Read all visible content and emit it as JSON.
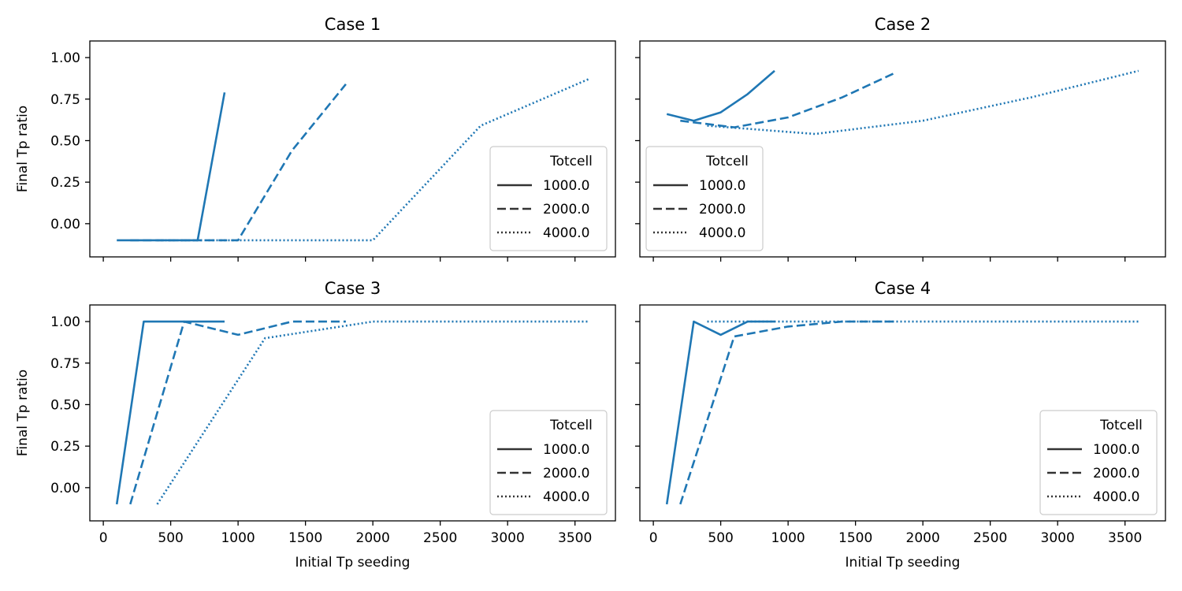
{
  "figure": {
    "xlabel": "Initial Tp seeding",
    "ylabel": "Final Tp ratio",
    "line_color": "#1f77b4",
    "legend_title": "Totcell",
    "legend_entries": [
      "1000.0",
      "2000.0",
      "4000.0"
    ],
    "legend_styles": [
      "solid",
      "dashed",
      "dotted"
    ]
  },
  "chart_data": [
    {
      "type": "line",
      "title": "Case 1",
      "xlabel": "",
      "ylabel": "Final Tp ratio",
      "xlim": [
        -100,
        3800
      ],
      "ylim": [
        -0.2,
        1.1
      ],
      "xticks": [
        0,
        500,
        1000,
        1500,
        2000,
        2500,
        3000,
        3500
      ],
      "yticks": [
        -0.0,
        0.25,
        0.5,
        0.75,
        1.0
      ],
      "ytick_labels": [
        "0.00",
        "0.25",
        "0.50",
        "0.75",
        "1.00"
      ],
      "legend": "lower-right",
      "legend_title": "Totcell",
      "series": [
        {
          "name": "1000.0",
          "style": "solid",
          "x": [
            100,
            300,
            500,
            700,
            900
          ],
          "y": [
            -0.1,
            -0.1,
            -0.1,
            -0.1,
            0.79
          ]
        },
        {
          "name": "2000.0",
          "style": "dashed",
          "x": [
            200,
            600,
            1000,
            1400,
            1800
          ],
          "y": [
            -0.1,
            -0.1,
            -0.1,
            0.44,
            0.84
          ]
        },
        {
          "name": "4000.0",
          "style": "dotted",
          "x": [
            400,
            1200,
            2000,
            2800,
            3600
          ],
          "y": [
            -0.1,
            -0.1,
            -0.1,
            0.59,
            0.87
          ]
        }
      ]
    },
    {
      "type": "line",
      "title": "Case 2",
      "xlabel": "",
      "ylabel": "",
      "xlim": [
        -100,
        3800
      ],
      "ylim": [
        -0.2,
        1.1
      ],
      "xticks": [
        0,
        500,
        1000,
        1500,
        2000,
        2500,
        3000,
        3500
      ],
      "yticks": [
        -0.0,
        0.25,
        0.5,
        0.75,
        1.0
      ],
      "legend": "lower-left",
      "legend_title": "Totcell",
      "series": [
        {
          "name": "1000.0",
          "style": "solid",
          "x": [
            100,
            300,
            500,
            700,
            900
          ],
          "y": [
            0.66,
            0.62,
            0.67,
            0.78,
            0.92
          ]
        },
        {
          "name": "2000.0",
          "style": "dashed",
          "x": [
            200,
            600,
            1000,
            1400,
            1800
          ],
          "y": [
            0.62,
            0.58,
            0.64,
            0.76,
            0.91
          ]
        },
        {
          "name": "4000.0",
          "style": "dotted",
          "x": [
            400,
            1200,
            2000,
            2800,
            3600
          ],
          "y": [
            0.59,
            0.54,
            0.62,
            0.76,
            0.92
          ]
        }
      ]
    },
    {
      "type": "line",
      "title": "Case 3",
      "xlabel": "Initial Tp seeding",
      "ylabel": "Final Tp ratio",
      "xlim": [
        -100,
        3800
      ],
      "ylim": [
        -0.2,
        1.1
      ],
      "xticks": [
        0,
        500,
        1000,
        1500,
        2000,
        2500,
        3000,
        3500
      ],
      "yticks": [
        -0.0,
        0.25,
        0.5,
        0.75,
        1.0
      ],
      "legend": "lower-right",
      "legend_title": "Totcell",
      "series": [
        {
          "name": "1000.0",
          "style": "solid",
          "x": [
            100,
            300,
            500,
            700,
            900
          ],
          "y": [
            -0.1,
            1.0,
            1.0,
            1.0,
            1.0
          ]
        },
        {
          "name": "2000.0",
          "style": "dashed",
          "x": [
            200,
            600,
            1000,
            1400,
            1800
          ],
          "y": [
            -0.1,
            1.0,
            0.92,
            1.0,
            1.0
          ]
        },
        {
          "name": "4000.0",
          "style": "dotted",
          "x": [
            400,
            1200,
            2000,
            2800,
            3600
          ],
          "y": [
            -0.1,
            0.9,
            1.0,
            1.0,
            1.0
          ]
        }
      ]
    },
    {
      "type": "line",
      "title": "Case 4",
      "xlabel": "Initial Tp seeding",
      "ylabel": "",
      "xlim": [
        -100,
        3800
      ],
      "ylim": [
        -0.2,
        1.1
      ],
      "xticks": [
        0,
        500,
        1000,
        1500,
        2000,
        2500,
        3000,
        3500
      ],
      "yticks": [
        -0.0,
        0.25,
        0.5,
        0.75,
        1.0
      ],
      "legend": "lower-right",
      "legend_title": "Totcell",
      "series": [
        {
          "name": "1000.0",
          "style": "solid",
          "x": [
            100,
            300,
            500,
            700,
            900
          ],
          "y": [
            -0.1,
            1.0,
            0.92,
            1.0,
            1.0
          ]
        },
        {
          "name": "2000.0",
          "style": "dashed",
          "x": [
            200,
            600,
            1000,
            1400,
            1800
          ],
          "y": [
            -0.1,
            0.91,
            0.97,
            1.0,
            1.0
          ]
        },
        {
          "name": "4000.0",
          "style": "dotted",
          "x": [
            400,
            1200,
            2000,
            2800,
            3600
          ],
          "y": [
            1.0,
            1.0,
            1.0,
            1.0,
            1.0
          ]
        }
      ]
    }
  ]
}
